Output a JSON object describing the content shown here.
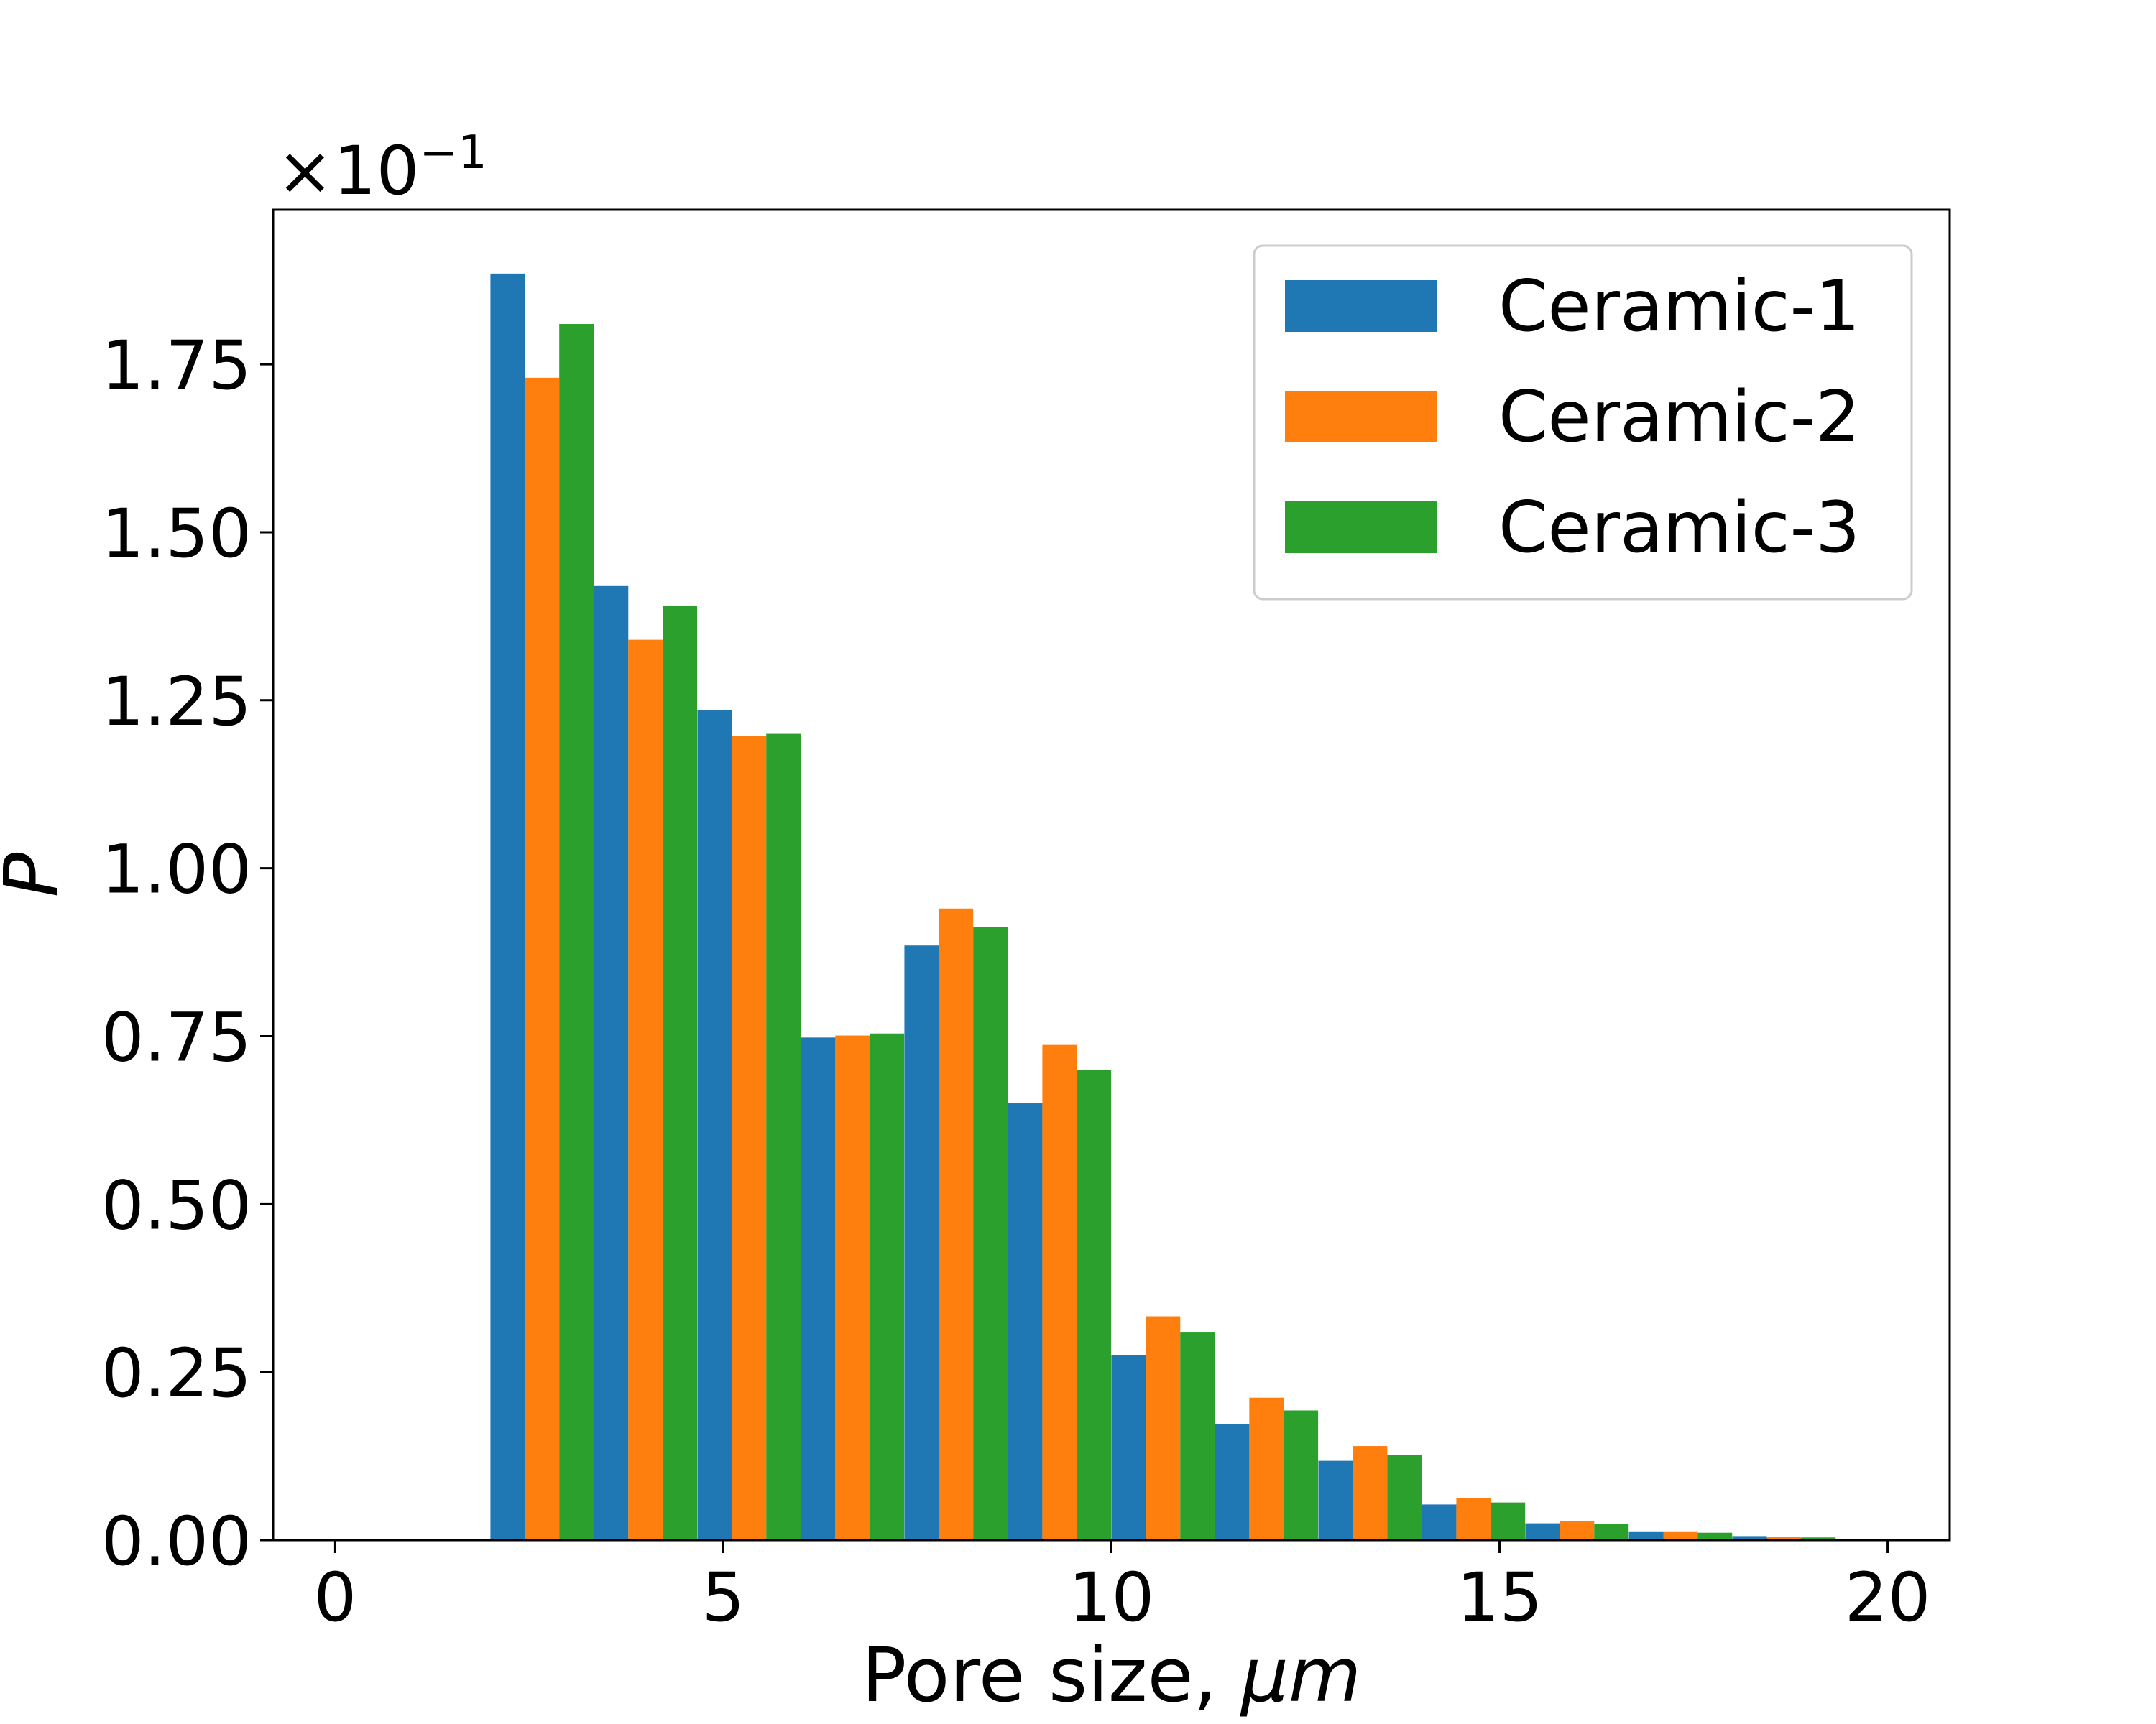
{
  "chart_data": {
    "type": "bar",
    "xlabel": "Pore size, ",
    "xlabel_unit": "μm",
    "ylabel": "P",
    "offset_base": "×10",
    "offset_exp": "−1",
    "xlim": [
      -0.8,
      20.8
    ],
    "ylim": [
      0,
      1.98
    ],
    "xticks": [
      0,
      5,
      10,
      15,
      20
    ],
    "xtick_labels": [
      "0",
      "5",
      "10",
      "15",
      "20"
    ],
    "yticks": [
      0,
      0.25,
      0.5,
      0.75,
      1.0,
      1.25,
      1.5,
      1.75
    ],
    "ytick_labels": [
      "0.00",
      "0.25",
      "0.50",
      "0.75",
      "1.00",
      "1.25",
      "1.50",
      "1.75"
    ],
    "legend_position": "top-right",
    "bar_group_width": 1.33,
    "x": [
      0.667,
      2.0,
      3.333,
      4.667,
      6.0,
      7.333,
      8.667,
      10.0,
      11.333,
      12.667,
      14.0,
      15.333,
      16.667,
      18.0,
      19.333
    ],
    "series": [
      {
        "name": "Ceramic-1",
        "color": "#1f77b4",
        "values": [
          0.0,
          1.885,
          1.42,
          1.235,
          0.748,
          0.885,
          0.65,
          0.275,
          0.173,
          0.118,
          0.053,
          0.025,
          0.012,
          0.006,
          0.002
        ]
      },
      {
        "name": "Ceramic-2",
        "color": "#ff7f0e",
        "values": [
          0.0,
          1.73,
          1.34,
          1.197,
          0.751,
          0.94,
          0.737,
          0.333,
          0.212,
          0.14,
          0.062,
          0.028,
          0.012,
          0.005,
          0.002
        ]
      },
      {
        "name": "Ceramic-3",
        "color": "#2ca02c",
        "values": [
          0.0,
          1.81,
          1.39,
          1.2,
          0.754,
          0.912,
          0.7,
          0.31,
          0.193,
          0.127,
          0.056,
          0.024,
          0.011,
          0.004,
          0.001
        ]
      }
    ]
  }
}
